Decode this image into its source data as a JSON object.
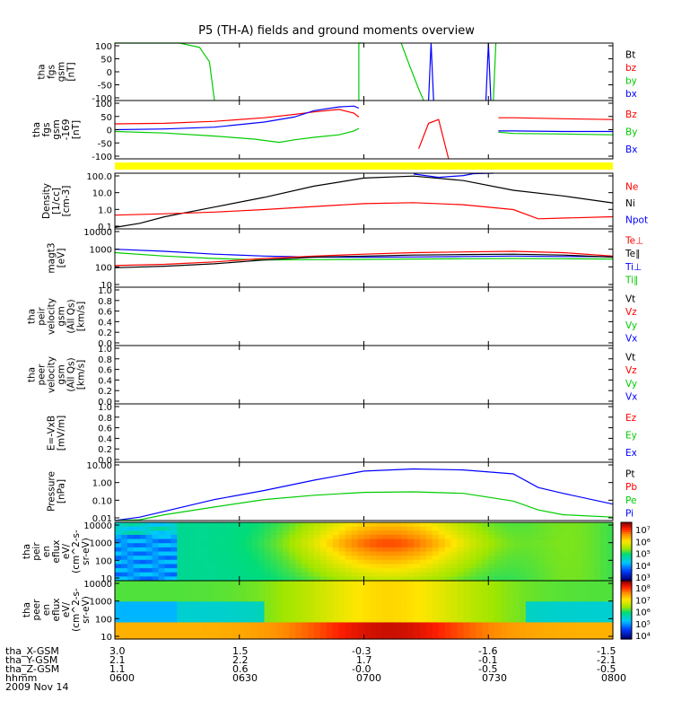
{
  "title": "P5 (TH-A) fields and ground moments overview",
  "colors": {
    "black": "#000000",
    "red": "#ff0000",
    "green": "#00cc00",
    "blue": "#0000ff",
    "yellow": "#ffff00"
  },
  "chart_data": [
    {
      "type": "line",
      "id": "fgs",
      "ylabel": [
        "tha",
        "fgs",
        "gsm",
        "[nT]"
      ],
      "ylim": [
        -100,
        100
      ],
      "yscale": "linear",
      "yticks": [
        "100",
        "50",
        "0",
        "-50",
        "-100"
      ],
      "legend": [
        {
          "name": "Bt",
          "color": "#000000"
        },
        {
          "name": "bz",
          "color": "#ff0000"
        },
        {
          "name": "by",
          "color": "#00cc00"
        },
        {
          "name": "bx",
          "color": "#0000ff"
        }
      ],
      "series": [
        {
          "name": "by",
          "color": "#00cc00",
          "x": [
            0,
            0.05,
            0.13,
            0.17,
            0.19,
            0.2
          ],
          "y": [
            100,
            100,
            100,
            85,
            35,
            -100
          ]
        },
        {
          "name": "by",
          "color": "#00cc00",
          "x": [
            0.49,
            0.49,
            0.5
          ],
          "y": [
            -100,
            100,
            100
          ]
        },
        {
          "name": "by",
          "color": "#00cc00",
          "x": [
            0.575,
            0.59,
            0.61,
            0.62
          ],
          "y": [
            100,
            30,
            -60,
            -100
          ]
        },
        {
          "name": "by",
          "color": "#00cc00",
          "x": [
            0.76,
            0.765
          ],
          "y": [
            -100,
            100
          ]
        },
        {
          "name": "bx",
          "color": "#0000ff",
          "x": [
            0.63,
            0.635,
            0.64
          ],
          "y": [
            -100,
            100,
            -100
          ]
        },
        {
          "name": "bx",
          "color": "#0000ff",
          "x": [
            0.745,
            0.75,
            0.755
          ],
          "y": [
            -100,
            100,
            -100
          ]
        }
      ]
    },
    {
      "type": "line",
      "id": "fgs169",
      "ylabel": [
        "tha",
        "fgs",
        "gsm",
        "-169",
        "[nT]"
      ],
      "ylim": [
        -120,
        110
      ],
      "yscale": "linear",
      "yticks": [
        "100",
        "50",
        "0",
        "-50",
        "-100"
      ],
      "legend": [
        {
          "name": "Bz",
          "color": "#ff0000"
        },
        {
          "name": "By",
          "color": "#00cc00"
        },
        {
          "name": "Bx",
          "color": "#0000ff"
        }
      ],
      "series": [
        {
          "name": "Bz",
          "color": "#ff0000",
          "x": [
            0,
            0.1,
            0.2,
            0.3,
            0.36,
            0.4,
            0.45,
            0.48,
            0.49
          ],
          "y": [
            18,
            20,
            28,
            42,
            55,
            65,
            75,
            60,
            45
          ]
        },
        {
          "name": "Bz",
          "color": "#ff0000",
          "x": [
            0.77,
            0.8,
            0.9,
            1.0
          ],
          "y": [
            42,
            42,
            38,
            35
          ]
        },
        {
          "name": "By",
          "color": "#00cc00",
          "x": [
            0,
            0.1,
            0.2,
            0.28,
            0.33,
            0.36,
            0.4,
            0.45,
            0.48,
            0.49
          ],
          "y": [
            -12,
            -18,
            -30,
            -42,
            -55,
            -45,
            -35,
            -25,
            -10,
            0
          ]
        },
        {
          "name": "By",
          "color": "#00cc00",
          "x": [
            0.77,
            0.8,
            0.9,
            1.0
          ],
          "y": [
            -15,
            -20,
            -22,
            -25
          ]
        },
        {
          "name": "Bx",
          "color": "#0000ff",
          "x": [
            0,
            0.1,
            0.2,
            0.3,
            0.36,
            0.4,
            0.45,
            0.48,
            0.49
          ],
          "y": [
            -5,
            -2,
            5,
            25,
            45,
            70,
            85,
            88,
            80
          ]
        },
        {
          "name": "Bx",
          "color": "#0000ff",
          "x": [
            0.77,
            0.8,
            0.9,
            1.0
          ],
          "y": [
            -10,
            -10,
            -12,
            -12
          ]
        },
        {
          "name": "Bz",
          "color": "#ff0000",
          "x": [
            0.61,
            0.63,
            0.65,
            0.67
          ],
          "y": [
            -80,
            20,
            35,
            -120
          ]
        }
      ]
    },
    {
      "type": "line",
      "id": "density",
      "ylabel": [
        "Density",
        "[1/cc]",
        "[cm-3]"
      ],
      "ylim": [
        0.1,
        100
      ],
      "yscale": "log",
      "yticks": [
        "100.0",
        "10.0",
        "1.0",
        "0.1"
      ],
      "legend": [
        {
          "name": "Ne",
          "color": "#ff0000"
        },
        {
          "name": "Ni",
          "color": "#000000"
        },
        {
          "name": "Npot",
          "color": "#0000ff"
        }
      ],
      "series": [
        {
          "name": "Ni",
          "color": "#000000",
          "x": [
            0,
            0.05,
            0.1,
            0.2,
            0.3,
            0.4,
            0.5,
            0.6,
            0.7,
            0.8,
            0.9,
            1.0
          ],
          "y": [
            0.12,
            0.2,
            0.45,
            1.5,
            5,
            20,
            55,
            70,
            40,
            12,
            6,
            2.5
          ]
        },
        {
          "name": "Ne",
          "color": "#ff0000",
          "x": [
            0,
            0.1,
            0.2,
            0.3,
            0.4,
            0.5,
            0.6,
            0.7,
            0.8,
            0.85,
            0.9,
            1.0
          ],
          "y": [
            0.55,
            0.65,
            0.8,
            1.1,
            1.6,
            2.3,
            2.6,
            2.0,
            1.1,
            0.35,
            0.38,
            0.45
          ]
        },
        {
          "name": "Npot",
          "color": "#0000ff",
          "x": [
            0.6,
            0.65,
            0.7,
            0.72,
            0.76
          ],
          "y": [
            90,
            60,
            75,
            95,
            100
          ]
        }
      ]
    },
    {
      "type": "line",
      "id": "temp",
      "ylabel": [
        "magt3",
        "[eV]"
      ],
      "ylim": [
        10,
        10000
      ],
      "yscale": "log",
      "yticks": [
        "10000",
        "1000",
        "100",
        "10"
      ],
      "legend": [
        {
          "name": "Te⊥",
          "color": "#ff0000"
        },
        {
          "name": "Te∥",
          "color": "#000000"
        },
        {
          "name": "Ti⊥",
          "color": "#0000ff"
        },
        {
          "name": "Ti∥",
          "color": "#00cc00"
        }
      ],
      "series": [
        {
          "name": "Ti⊥",
          "color": "#0000ff",
          "x": [
            0,
            0.1,
            0.2,
            0.3,
            0.4,
            0.5,
            0.6,
            0.7,
            0.8,
            0.9,
            1.0
          ],
          "y": [
            900,
            700,
            500,
            400,
            350,
            350,
            360,
            380,
            400,
            380,
            370
          ]
        },
        {
          "name": "Ti∥",
          "color": "#00cc00",
          "x": [
            0,
            0.1,
            0.2,
            0.3,
            0.4,
            0.5,
            0.6,
            0.7,
            0.8,
            0.9,
            1.0
          ],
          "y": [
            600,
            400,
            300,
            250,
            260,
            270,
            280,
            290,
            300,
            290,
            280
          ]
        },
        {
          "name": "Te⊥",
          "color": "#ff0000",
          "x": [
            0,
            0.1,
            0.2,
            0.3,
            0.4,
            0.5,
            0.6,
            0.7,
            0.8,
            0.9,
            1.0
          ],
          "y": [
            130,
            150,
            200,
            300,
            400,
            500,
            600,
            650,
            700,
            600,
            400
          ]
        },
        {
          "name": "Te∥",
          "color": "#000000",
          "x": [
            0,
            0.1,
            0.2,
            0.3,
            0.4,
            0.5,
            0.6,
            0.7,
            0.8,
            0.9,
            1.0
          ],
          "y": [
            100,
            120,
            160,
            250,
            350,
            400,
            450,
            480,
            500,
            450,
            350
          ]
        }
      ]
    },
    {
      "type": "line",
      "id": "peir",
      "ylabel": [
        "tha",
        "peir",
        "velocity",
        "gsm",
        "(All Qs)",
        "[km/s]"
      ],
      "ylim": [
        0,
        1
      ],
      "yscale": "linear",
      "yticks": [
        "1.0",
        "0.8",
        "0.6",
        "0.4",
        "0.2",
        "0.0"
      ],
      "legend": [
        {
          "name": "Vt",
          "color": "#000000"
        },
        {
          "name": "Vz",
          "color": "#ff0000"
        },
        {
          "name": "Vy",
          "color": "#00cc00"
        },
        {
          "name": "Vx",
          "color": "#0000ff"
        }
      ],
      "series": []
    },
    {
      "type": "line",
      "id": "peer",
      "ylabel": [
        "tha",
        "peer",
        "velocity",
        "gsm",
        "(All Qs)",
        "[km/s]"
      ],
      "ylim": [
        0,
        1
      ],
      "yscale": "linear",
      "yticks": [
        "1.0",
        "0.8",
        "0.6",
        "0.4",
        "0.2",
        "0.0"
      ],
      "legend": [
        {
          "name": "Vt",
          "color": "#000000"
        },
        {
          "name": "Vz",
          "color": "#ff0000"
        },
        {
          "name": "Vy",
          "color": "#00cc00"
        },
        {
          "name": "Vx",
          "color": "#0000ff"
        }
      ],
      "series": []
    },
    {
      "type": "line",
      "id": "efield",
      "ylabel": [
        "E=-VxB",
        "[mV/m]"
      ],
      "ylim": [
        0,
        1
      ],
      "yscale": "linear",
      "yticks": [
        "1.0",
        "0.8",
        "0.6",
        "0.4",
        "0.2",
        "0.0"
      ],
      "legend": [
        {
          "name": "Ez",
          "color": "#ff0000"
        },
        {
          "name": "Ey",
          "color": "#00cc00"
        },
        {
          "name": "Ex",
          "color": "#0000ff"
        }
      ],
      "series": []
    },
    {
      "type": "line",
      "id": "pressure",
      "ylabel": [
        "Pressure",
        "[nPa]"
      ],
      "ylim": [
        0.01,
        10
      ],
      "yscale": "log",
      "yticks": [
        "10.00",
        "1.00",
        "0.10",
        "0.01"
      ],
      "legend": [
        {
          "name": "Pt",
          "color": "#000000"
        },
        {
          "name": "Pb",
          "color": "#ff0000"
        },
        {
          "name": "Pe",
          "color": "#00cc00"
        },
        {
          "name": "Pi",
          "color": "#0000ff"
        }
      ],
      "series": [
        {
          "name": "Pi",
          "color": "#0000ff",
          "x": [
            0,
            0.05,
            0.1,
            0.2,
            0.3,
            0.4,
            0.5,
            0.6,
            0.7,
            0.8,
            0.85,
            0.9,
            1.0
          ],
          "y": [
            0.01,
            0.015,
            0.03,
            0.12,
            0.35,
            1.2,
            3.5,
            4.5,
            4,
            2.5,
            0.5,
            0.25,
            0.07
          ]
        },
        {
          "name": "Pe",
          "color": "#00cc00",
          "x": [
            0,
            0.05,
            0.1,
            0.2,
            0.3,
            0.4,
            0.5,
            0.6,
            0.7,
            0.8,
            0.85,
            0.9,
            1.0
          ],
          "y": [
            0.01,
            0.011,
            0.02,
            0.05,
            0.12,
            0.2,
            0.28,
            0.3,
            0.25,
            0.1,
            0.035,
            0.02,
            0.015
          ]
        }
      ]
    },
    {
      "type": "heatmap",
      "id": "peir_spec",
      "ylabel": [
        "tha",
        "peir",
        "en",
        "eflux",
        "eV/",
        "(cm^2-s-",
        "sr-eV)"
      ],
      "ylim": [
        5,
        20000
      ],
      "yscale": "log",
      "yticks": [
        "10000",
        "1000",
        "100",
        "10"
      ],
      "colorbar": {
        "ticks": [
          "10⁷",
          "10⁶",
          "10⁵",
          "10⁴",
          "10³"
        ],
        "range": [
          1000,
          10000000
        ]
      },
      "peak_time": 0.55
    },
    {
      "type": "heatmap",
      "id": "peer_spec",
      "ylabel": [
        "tha",
        "peer",
        "en",
        "eflux",
        "eV/",
        "(cm^2-s-",
        "sr-eV)"
      ],
      "ylim": [
        5,
        20000
      ],
      "yscale": "log",
      "yticks": [
        "10000",
        "1000",
        "100",
        "10"
      ],
      "colorbar": {
        "ticks": [
          "10⁸",
          "10⁷",
          "10⁶",
          "10⁵",
          "10⁴"
        ],
        "range": [
          10000,
          100000000
        ]
      },
      "peak_time": 0.55
    }
  ],
  "x_axis": {
    "row_labels": [
      "tha_X-GSM",
      "tha_Y-GSM",
      "tha_Z-GSM",
      "hhmm",
      "2009 Nov 14"
    ],
    "columns": [
      {
        "values": [
          "3.0",
          "2.1",
          "1.1",
          "0600"
        ]
      },
      {
        "values": [
          "1.5",
          "2.2",
          "0.6",
          "0630"
        ]
      },
      {
        "values": [
          "-0.3",
          "1.7",
          "-0.0",
          "0700"
        ]
      },
      {
        "values": [
          "-1.6",
          "-0.1",
          "-0.5",
          "0730"
        ]
      },
      {
        "values": [
          "-1.5",
          "-2.1",
          "-0.5",
          "0800"
        ]
      }
    ]
  }
}
